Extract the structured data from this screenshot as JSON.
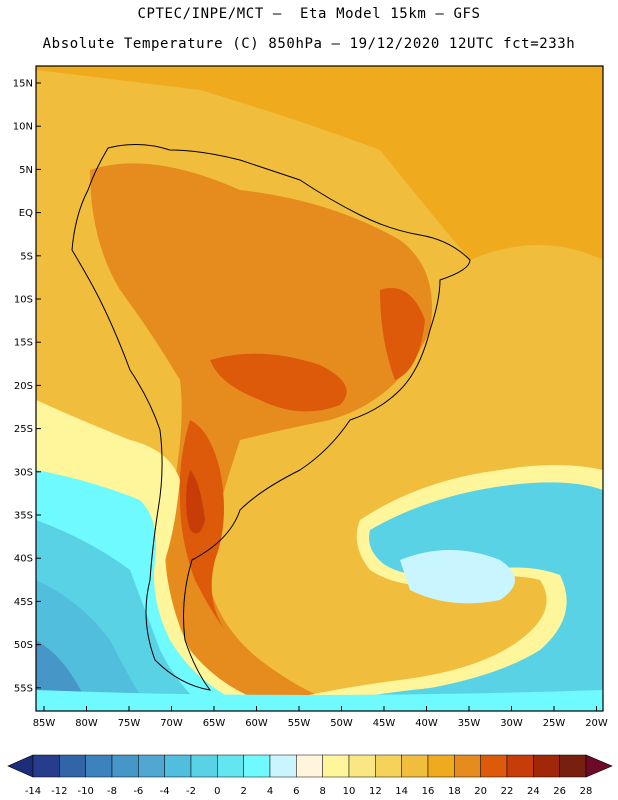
{
  "header": {
    "line1": "CPTEC/INPE/MCT –  Eta Model 15km – GFS",
    "line2": "Absolute Temperature (C) 850hPa – 19/12/2020 12UTC fct=233h"
  },
  "map": {
    "lat_labels": [
      "15N",
      "10N",
      "5N",
      "EQ",
      "5S",
      "10S",
      "15S",
      "20S",
      "25S",
      "30S",
      "35S",
      "40S",
      "45S",
      "50S",
      "55S"
    ],
    "lon_labels": [
      "85W",
      "80W",
      "75W",
      "70W",
      "65W",
      "60W",
      "55W",
      "50W",
      "45W",
      "40W",
      "35W",
      "30W",
      "25W",
      "20W"
    ],
    "legend": {
      "labels": [
        "-14",
        "-12",
        "-10",
        "-8",
        "-6",
        "-4",
        "-2",
        "0",
        "2",
        "4",
        "6",
        "8",
        "10",
        "12",
        "14",
        "16",
        "18",
        "20",
        "22",
        "24",
        "26",
        "28"
      ],
      "colors": [
        "#283c8c",
        "#3264a8",
        "#3c82bc",
        "#4696c8",
        "#50a8d2",
        "#50bedc",
        "#5ad2e6",
        "#64e6f0",
        "#6efaff",
        "#c8f5ff",
        "#fff5dc",
        "#fff59b",
        "#fae682",
        "#f5d25a",
        "#f0be3c",
        "#f0aa1e",
        "#e68c1e",
        "#dc5a0a",
        "#c83c0a",
        "#a02808",
        "#782010"
      ],
      "low_arrow": "#1e2d78",
      "high_arrow": "#6e0a28"
    }
  }
}
